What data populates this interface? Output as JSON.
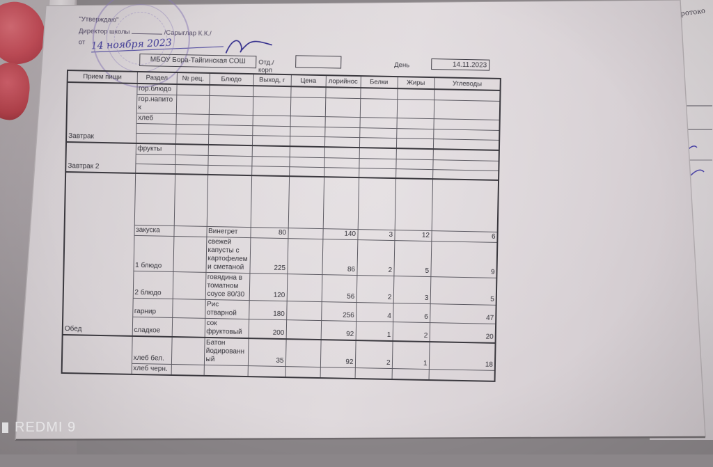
{
  "photo": {
    "watermark": "REDMI 9",
    "underlying_paper": {
      "printed_text": "протоко"
    }
  },
  "approval": {
    "line1": "\"Утверждаю\"",
    "line2_label": "Директор школы",
    "line2_name": "/Сарыглар К.К./",
    "line3_prefix": "от",
    "handwritten_date": "14 ноября 2023"
  },
  "org": {
    "school": "МБОУ Бора-Тайгинская СОШ",
    "dept_label": "Отд./корп",
    "day_label": "День",
    "date": "14.11.2023"
  },
  "menu_table": {
    "columns": [
      "Прием пищи",
      "Раздел",
      "№ рец.",
      "Блюдо",
      "Выход, г",
      "Цена",
      "лорийнос",
      "Белки",
      "Жиры",
      "Углеводы"
    ],
    "sections": [
      {
        "meal": "Завтрак",
        "rows": [
          {
            "section": "гор.блюдо"
          },
          {
            "section": "гор.напиток"
          },
          {
            "section": "хлеб"
          },
          {
            "section": ""
          },
          {
            "section": ""
          }
        ]
      },
      {
        "meal": "Завтрак 2",
        "rows": [
          {
            "section": "фрукты"
          },
          {
            "section": ""
          },
          {
            "section": ""
          }
        ]
      },
      {
        "meal": "Обед",
        "rows": [
          {
            "section": "",
            "spacer": true
          },
          {
            "section": "закуска",
            "dish": "Винегрет",
            "out": "80",
            "kcal": "140",
            "protein": "3",
            "fat": "12",
            "carbs": "6"
          },
          {
            "section": "1 блюдо",
            "dish": "свежей капусты с картофелем и сметаной",
            "out": "225",
            "kcal": "86",
            "protein": "2",
            "fat": "5",
            "carbs": "9"
          },
          {
            "section": "2 блюдо",
            "dish": "говядина в томатном соусе 80/30",
            "out": "120",
            "kcal": "56",
            "protein": "2",
            "fat": "3",
            "carbs": "5"
          },
          {
            "section": "гарнир",
            "dish": "Рис отварной",
            "out": "180",
            "kcal": "256",
            "protein": "4",
            "fat": "6",
            "carbs": "47"
          },
          {
            "section": "сладкое",
            "dish": "сок фруктовый",
            "out": "200",
            "kcal": "92",
            "protein": "1",
            "fat": "2",
            "carbs": "20"
          }
        ]
      },
      {
        "meal": "",
        "rows": [
          {
            "section": "хлеб бел.",
            "dish": "Батон йодированный",
            "out": "35",
            "kcal": "92",
            "protein": "2",
            "fat": "1",
            "carbs": "18"
          },
          {
            "section": "хлеб черн."
          }
        ]
      }
    ]
  }
}
